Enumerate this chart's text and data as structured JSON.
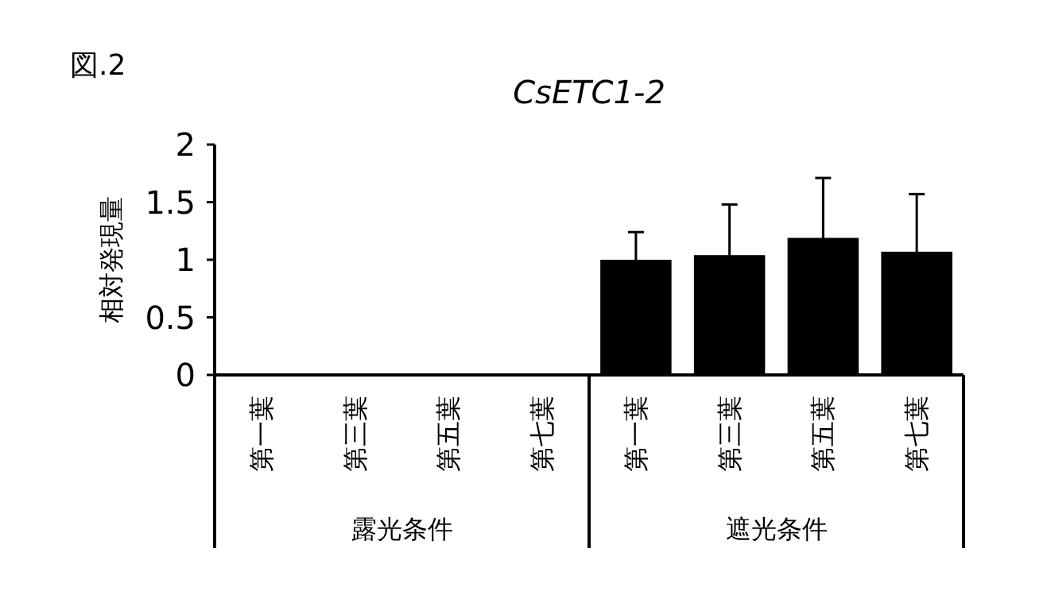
{
  "chart_data": {
    "type": "bar",
    "title": "CsETC1-2",
    "ylabel": "相対発現量",
    "annotations": [
      "図.2",
      "露光条件",
      "遮光条件"
    ],
    "categories": [
      "第一葉",
      "第三葉",
      "第五葉",
      "第七葉",
      "第一葉",
      "第三葉",
      "第五葉",
      "第七葉"
    ],
    "values": [
      0.01,
      0.01,
      0.01,
      0.01,
      1.0,
      1.04,
      1.19,
      1.07
    ],
    "errors": [
      null,
      null,
      null,
      null,
      0.24,
      0.44,
      0.52,
      0.5
    ],
    "color": "#000000",
    "ylim": [
      0,
      2
    ],
    "yticks": [
      0,
      0.5,
      1,
      1.5,
      2
    ],
    "grid": false
  }
}
